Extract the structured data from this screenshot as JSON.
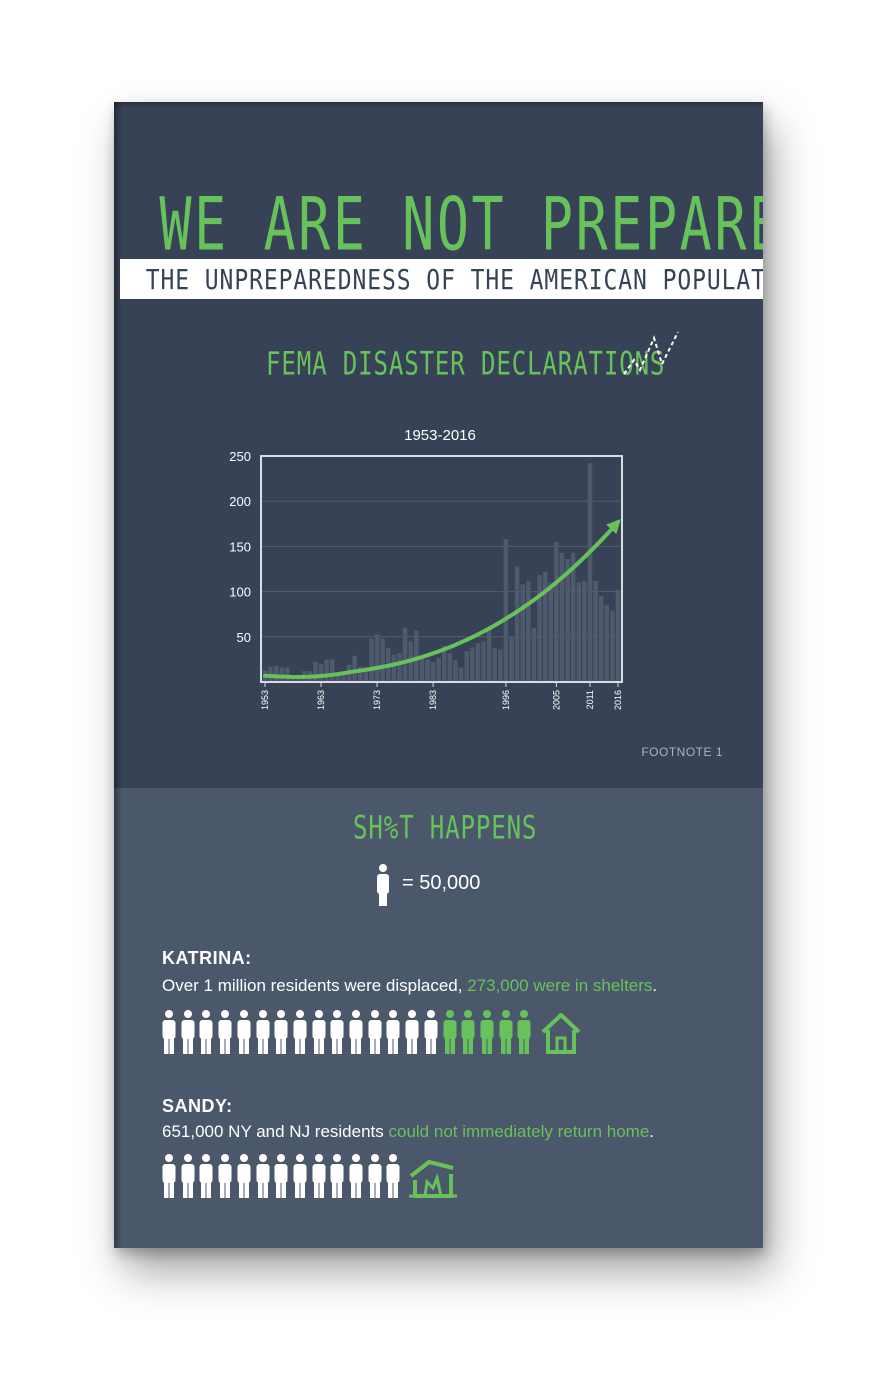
{
  "header": {
    "title": "WE ARE NOT PREPARED",
    "subtitle": "THE UNPREPAREDNESS OF THE AMERICAN POPULATION"
  },
  "fema": {
    "heading": "FEMA DISASTER DECLARATIONS",
    "footnote": "FOOTNOTE 1"
  },
  "chart_data": {
    "type": "bar",
    "title": "1953-2016",
    "xlabel": "",
    "ylabel": "",
    "ylim": [
      0,
      250
    ],
    "yticks": [
      50,
      100,
      150,
      200,
      250
    ],
    "xtick_labels": [
      "1953",
      "1963",
      "1973",
      "1983",
      "1996",
      "2005",
      "2011",
      "2016"
    ],
    "grid": true,
    "x": [
      1953,
      1954,
      1955,
      1956,
      1957,
      1958,
      1959,
      1960,
      1961,
      1962,
      1963,
      1964,
      1965,
      1966,
      1967,
      1968,
      1969,
      1970,
      1971,
      1972,
      1973,
      1974,
      1975,
      1976,
      1977,
      1978,
      1979,
      1980,
      1981,
      1982,
      1983,
      1984,
      1985,
      1986,
      1987,
      1988,
      1989,
      1990,
      1991,
      1992,
      1993,
      1994,
      1995,
      1996,
      1997,
      1998,
      1999,
      2000,
      2001,
      2002,
      2003,
      2004,
      2005,
      2006,
      2007,
      2008,
      2009,
      2010,
      2011,
      2012,
      2013,
      2014,
      2015,
      2016
    ],
    "values": [
      13,
      17,
      18,
      16,
      16,
      7,
      7,
      12,
      12,
      22,
      20,
      25,
      25,
      11,
      11,
      19,
      29,
      17,
      17,
      48,
      53,
      48,
      38,
      30,
      32,
      60,
      45,
      57,
      28,
      25,
      22,
      27,
      40,
      32,
      24,
      16,
      34,
      38,
      43,
      45,
      58,
      38,
      36,
      158,
      50,
      128,
      108,
      112,
      60,
      118,
      122,
      110,
      155,
      143,
      136,
      143,
      110,
      112,
      242,
      112,
      95,
      85,
      79,
      102
    ],
    "trend": "rising exponential curve from ~1953 to 2016",
    "colors": {
      "bars": "#4f5a6c",
      "trend": "#67c25b",
      "grid": "#535e70",
      "frame": "#d9dde3"
    }
  },
  "happens": {
    "heading": "SH%T HAPPENS",
    "legend": "= 50,000"
  },
  "katrina": {
    "title": "KATRINA:",
    "desc_plain": "Over 1 million residents were displaced, ",
    "desc_highlight": "273,000 were in shelters",
    "desc_end": ".",
    "white_people": 15,
    "green_people": 5,
    "icon": "house-icon"
  },
  "sandy": {
    "title": "SANDY:",
    "desc_plain": "651,000 NY and NJ residents ",
    "desc_highlight": "could not immediately return home",
    "desc_end": ".",
    "white_people": 13,
    "icon": "destroyed-house-icon"
  },
  "colors": {
    "dark_panel": "#374256",
    "light_panel": "#4b586b",
    "accent_green": "#67c25b",
    "white": "#ffffff"
  }
}
